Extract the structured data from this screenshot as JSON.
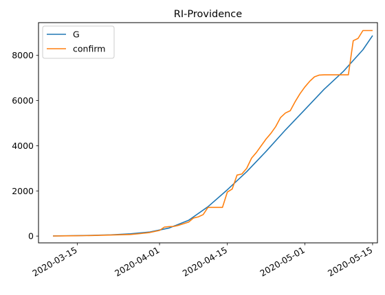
{
  "chart_data": {
    "type": "line",
    "title": "RI-Providence",
    "xlabel": "",
    "ylabel": "",
    "x_axis": {
      "kind": "date",
      "range": [
        "2020-03-07",
        "2020-05-16"
      ],
      "ticks": [
        "2020-03-15",
        "2020-04-01",
        "2020-04-15",
        "2020-05-01",
        "2020-05-15"
      ]
    },
    "y_axis": {
      "range": [
        -300,
        9450
      ],
      "ticks": [
        0,
        2000,
        4000,
        6000,
        8000
      ]
    },
    "grid": false,
    "legend": "top-left",
    "series": [
      {
        "name": "G",
        "color": "#1f77b4",
        "x": [
          "2020-03-10",
          "2020-03-14",
          "2020-03-18",
          "2020-03-22",
          "2020-03-26",
          "2020-03-30",
          "2020-04-03",
          "2020-04-07",
          "2020-04-11",
          "2020-04-15",
          "2020-04-19",
          "2020-04-23",
          "2020-04-27",
          "2020-05-01",
          "2020-05-05",
          "2020-05-09",
          "2020-05-13",
          "2020-05-15"
        ],
        "values": [
          8,
          15,
          30,
          55,
          100,
          180,
          360,
          700,
          1300,
          2050,
          2850,
          3750,
          4700,
          5600,
          6500,
          7300,
          8250,
          8880
        ]
      },
      {
        "name": "confirm",
        "color": "#ff7f0e",
        "x": [
          "2020-03-10",
          "2020-03-14",
          "2020-03-18",
          "2020-03-22",
          "2020-03-26",
          "2020-03-28",
          "2020-03-30",
          "2020-04-01",
          "2020-04-02",
          "2020-04-03",
          "2020-04-04",
          "2020-04-05",
          "2020-04-06",
          "2020-04-07",
          "2020-04-08",
          "2020-04-09",
          "2020-04-10",
          "2020-04-11",
          "2020-04-12",
          "2020-04-13",
          "2020-04-14",
          "2020-04-15",
          "2020-04-16",
          "2020-04-17",
          "2020-04-18",
          "2020-04-19",
          "2020-04-20",
          "2020-04-21",
          "2020-04-22",
          "2020-04-23",
          "2020-04-24",
          "2020-04-25",
          "2020-04-26",
          "2020-04-27",
          "2020-04-28",
          "2020-04-29",
          "2020-04-30",
          "2020-05-01",
          "2020-05-02",
          "2020-05-03",
          "2020-05-04",
          "2020-05-05",
          "2020-05-06",
          "2020-05-07",
          "2020-05-08",
          "2020-05-09",
          "2020-05-10",
          "2020-05-11",
          "2020-05-12",
          "2020-05-13",
          "2020-05-14",
          "2020-05-15"
        ],
        "values": [
          5,
          12,
          25,
          45,
          70,
          110,
          160,
          250,
          400,
          420,
          430,
          480,
          550,
          620,
          800,
          850,
          950,
          1270,
          1270,
          1270,
          1270,
          1950,
          2080,
          2700,
          2750,
          3000,
          3450,
          3700,
          4000,
          4300,
          4550,
          4850,
          5250,
          5450,
          5550,
          5950,
          6300,
          6600,
          6850,
          7050,
          7130,
          7140,
          7140,
          7140,
          7140,
          7140,
          7140,
          8650,
          8750,
          9100,
          9100,
          9100
        ]
      }
    ]
  }
}
